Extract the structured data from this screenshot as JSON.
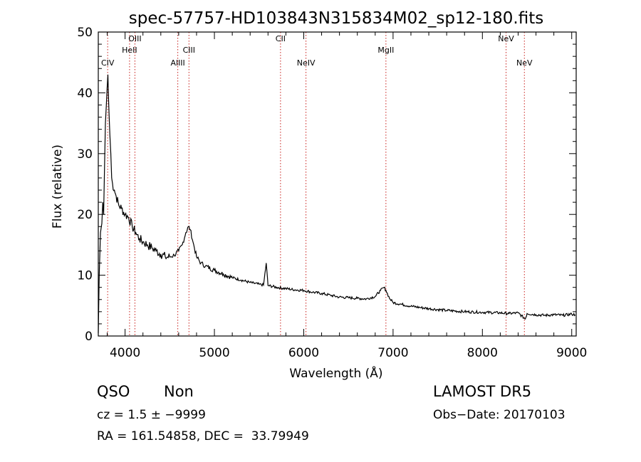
{
  "chart_data": {
    "type": "line",
    "title": "spec-57757-HD103843N315834M02_sp12-180.fits",
    "xlabel": "Wavelength (Å)",
    "ylabel": "Flux (relative)",
    "xlim": [
      3700,
      9050
    ],
    "ylim": [
      0,
      50
    ],
    "x_ticks": [
      4000,
      5000,
      6000,
      7000,
      8000,
      9000
    ],
    "y_ticks": [
      0,
      10,
      20,
      30,
      40,
      50
    ],
    "grid": false,
    "series": [
      {
        "x": [
          3700,
          3710,
          3725,
          3740,
          3750,
          3760,
          3770,
          3780,
          3790,
          3800,
          3808,
          3815,
          3822,
          3830,
          3840,
          3850,
          3860,
          3880,
          3900,
          3930,
          3960,
          4000,
          4040,
          4080,
          4120,
          4160,
          4200,
          4250,
          4300,
          4350,
          4400,
          4450,
          4500,
          4550,
          4600,
          4640,
          4680,
          4710,
          4730,
          4760,
          4800,
          4850,
          4900,
          5000,
          5100,
          5200,
          5300,
          5400,
          5500,
          5550,
          5580,
          5600,
          5700,
          5800,
          5900,
          6000,
          6100,
          6200,
          6300,
          6400,
          6500,
          6600,
          6700,
          6800,
          6860,
          6900,
          6920,
          6960,
          7000,
          7100,
          7200,
          7300,
          7400,
          7600,
          7800,
          8000,
          8200,
          8300,
          8400,
          8480,
          8500,
          8600,
          8700,
          8800,
          8900,
          9000,
          9040
        ],
        "y": [
          0.5,
          10,
          17,
          18.5,
          22,
          20,
          28,
          35,
          38,
          41,
          43,
          39,
          36,
          33,
          30,
          26,
          25,
          24,
          23,
          21.5,
          21,
          20,
          19.5,
          18,
          17,
          16,
          15.5,
          15,
          14.5,
          14,
          13.5,
          13,
          13,
          13.3,
          14,
          15,
          17,
          18,
          17.5,
          15.5,
          13,
          12,
          11.5,
          10.8,
          10.2,
          9.6,
          9.2,
          8.8,
          8.5,
          8.4,
          12,
          8.3,
          8,
          7.8,
          7.6,
          7.5,
          7.2,
          7,
          6.7,
          6.4,
          6.3,
          6.2,
          6.1,
          6.5,
          7.5,
          8,
          7.5,
          6.2,
          5.5,
          5.2,
          4.9,
          4.7,
          4.5,
          4.2,
          4,
          3.9,
          3.8,
          3.7,
          3.8,
          2.8,
          3.7,
          3.5,
          3.4,
          3.5,
          3.4,
          3.6,
          3.5
        ]
      }
    ],
    "lines": [
      {
        "name": "CIV",
        "x": 3805
      },
      {
        "name": "HeII",
        "x": 4050
      },
      {
        "name": "OIII",
        "x": 4110
      },
      {
        "name": "AlIII",
        "x": 4590
      },
      {
        "name": "CIII",
        "x": 4715
      },
      {
        "name": "CII",
        "x": 5740
      },
      {
        "name": "NeIV",
        "x": 6025
      },
      {
        "name": "MgII",
        "x": 6920
      },
      {
        "name": "NeV",
        "x": 8265
      },
      {
        "name": "NeV",
        "x": 8470
      }
    ]
  },
  "info": {
    "class": "QSO",
    "subclass": "Non",
    "cz": "cz = 1.5 ± −9999",
    "radec": "RA = 161.54858, DEC =  33.79949",
    "survey": "LAMOST DR5",
    "obs_date": "Obs−Date: 20170103"
  },
  "colors": {
    "spectrum": "#000000",
    "line_markers": "#c8201c",
    "axes": "#000000"
  }
}
